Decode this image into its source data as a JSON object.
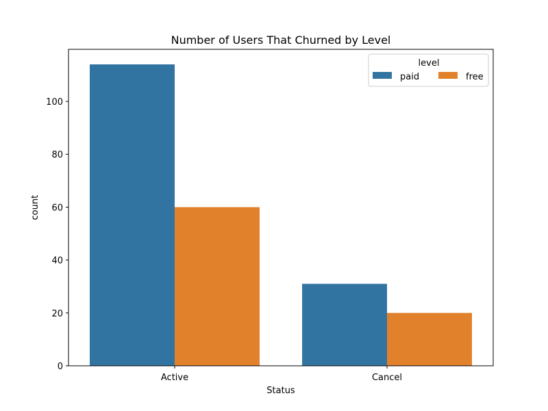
{
  "chart_data": {
    "type": "bar",
    "title": "Number of Users That Churned by Level",
    "xlabel": "Status",
    "ylabel": "count",
    "categories": [
      "Active",
      "Cancel"
    ],
    "series": [
      {
        "name": "paid",
        "values": [
          114,
          31
        ],
        "color": "#3274a1"
      },
      {
        "name": "free",
        "values": [
          60,
          20
        ],
        "color": "#e1812c"
      }
    ],
    "ylim": [
      0,
      119.7
    ],
    "yticks": [
      0,
      20,
      40,
      60,
      80,
      100
    ],
    "grid": false,
    "legend": {
      "title": "level",
      "placement": "top-right"
    }
  }
}
